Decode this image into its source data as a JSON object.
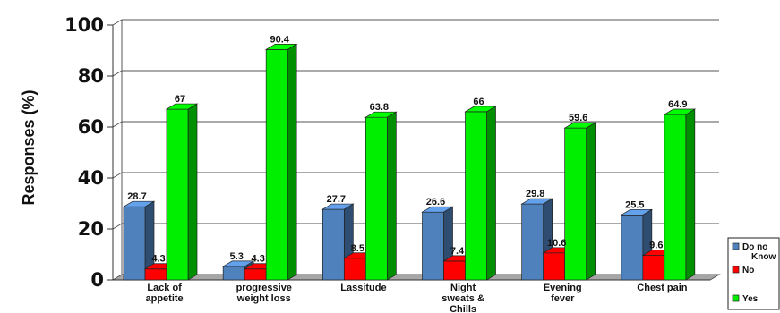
{
  "chart_data": {
    "type": "bar",
    "ylabel": "Responses (%)",
    "ylim": [
      0,
      100
    ],
    "yticks": [
      0,
      20,
      40,
      60,
      80,
      100
    ],
    "categories": [
      [
        "Lack of",
        "appetite"
      ],
      [
        "progressive",
        "weight loss"
      ],
      [
        "Lassitude"
      ],
      [
        "Night",
        "sweats &",
        "Chills"
      ],
      [
        "Evening",
        "fever"
      ],
      [
        "Chest pain"
      ]
    ],
    "series": [
      {
        "name": "Do no Know",
        "name_lines": [
          "Do no",
          "Know"
        ],
        "color": "#4f81bd",
        "values": [
          28.7,
          5.3,
          27.7,
          26.6,
          29.8,
          25.5
        ]
      },
      {
        "name": "No",
        "name_lines": [
          "No"
        ],
        "color": "#ff0000",
        "values": [
          4.3,
          4.3,
          8.5,
          7.4,
          10.6,
          9.6
        ]
      },
      {
        "name": "Yes",
        "name_lines": [
          "Yes"
        ],
        "color": "#00ee00",
        "values": [
          67,
          90.4,
          63.8,
          66,
          59.6,
          64.9
        ]
      }
    ],
    "grid": true,
    "legend": "bottom-right"
  }
}
